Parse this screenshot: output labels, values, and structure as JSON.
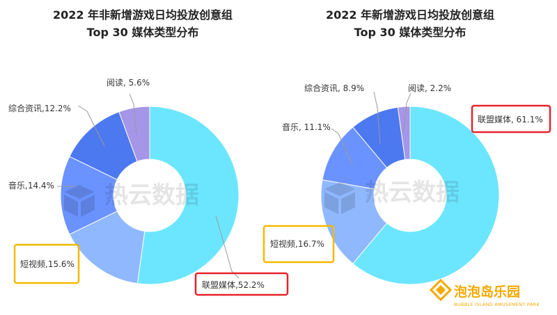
{
  "watermark": {
    "text": "热云数据"
  },
  "brand": {
    "name": "泡泡岛乐园",
    "subtitle": "BUBBLE ISLAND AMUSEMENT PARK"
  },
  "chart_data": [
    {
      "type": "pie",
      "variant": "donut",
      "title_lines": [
        "2022 年非新增游戏日均投放创意组",
        "Top 30 媒体类型分布"
      ],
      "categories": [
        "联盟媒体",
        "短视频",
        "音乐",
        "综合资讯",
        "阅读"
      ],
      "values": [
        52.2,
        15.6,
        14.4,
        12.2,
        5.6
      ],
      "labels": [
        "联盟媒体,52.2%",
        "短视频,15.6%",
        "音乐,14.4%",
        "综合资讯,12.2%",
        "阅读, 5.6%"
      ],
      "colors": [
        "#6ce6ff",
        "#8fb8ff",
        "#6b93ff",
        "#4c78f0",
        "#a596e8"
      ],
      "highlight": {
        "red": "联盟媒体",
        "yellow": "短视频"
      }
    },
    {
      "type": "pie",
      "variant": "donut",
      "title_lines": [
        "2022 年新增游戏日均投放创意组",
        "Top 30 媒体类型分布"
      ],
      "categories": [
        "联盟媒体",
        "短视频",
        "音乐",
        "综合资讯",
        "阅读"
      ],
      "values": [
        61.1,
        16.7,
        11.1,
        8.9,
        2.2
      ],
      "labels": [
        "联盟媒体, 61.1%",
        "短视频,16.7%",
        "音乐, 11.1%",
        "综合资讯, 8.9%",
        "阅读, 2.2%"
      ],
      "colors": [
        "#6ce6ff",
        "#8fb8ff",
        "#6b93ff",
        "#4c78f0",
        "#a596e8"
      ],
      "highlight": {
        "red": "联盟媒体",
        "yellow": "短视频"
      }
    }
  ]
}
